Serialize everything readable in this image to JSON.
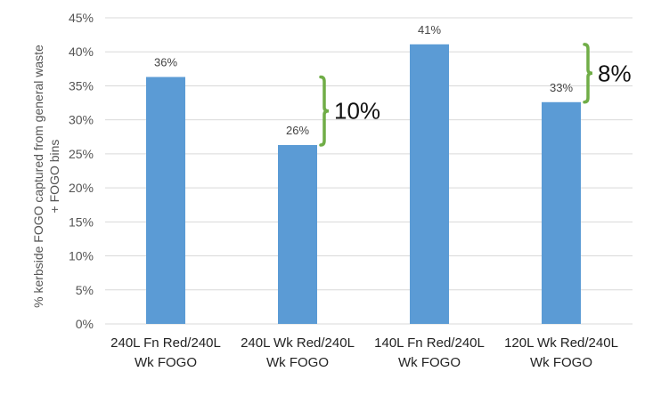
{
  "chart_data": {
    "type": "bar",
    "title": "",
    "xlabel": "",
    "ylabel": [
      "% kerbside FOGO captured from general waste",
      "+ FOGO bins"
    ],
    "ylim": [
      0,
      45
    ],
    "yticks": [
      "0%",
      "5%",
      "10%",
      "15%",
      "20%",
      "25%",
      "30%",
      "35%",
      "40%",
      "45%"
    ],
    "grid": true,
    "bar_color": "#5b9bd5",
    "bracket_color": "#70ad47",
    "categories": [
      [
        "240L Fn Red/240L",
        "Wk FOGO"
      ],
      [
        "240L Wk Red/240L",
        "Wk FOGO"
      ],
      [
        "140L Fn Red/240L",
        "Wk FOGO"
      ],
      [
        "120L Wk Red/240L",
        "Wk FOGO"
      ]
    ],
    "values": [
      36.3,
      26.3,
      41.1,
      32.6
    ],
    "data_labels": [
      "36%",
      "26%",
      "41%",
      "33%"
    ],
    "annotations": [
      {
        "text": "10%",
        "bar_index": 1,
        "from": 26.3,
        "to": 36.3
      },
      {
        "text": "8%",
        "bar_index": 3,
        "from": 32.6,
        "to": 41.1
      }
    ]
  }
}
